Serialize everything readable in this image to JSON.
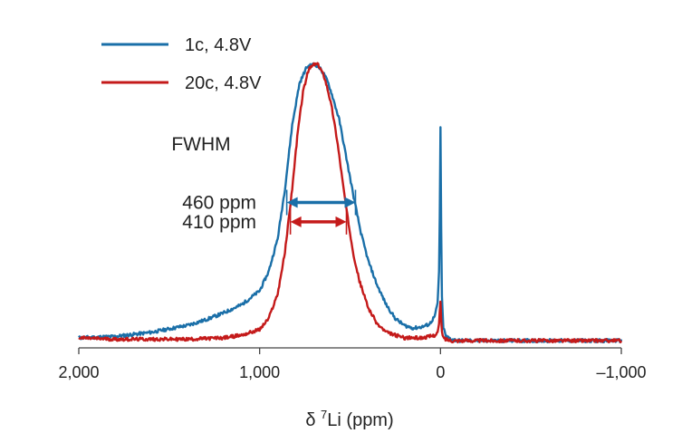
{
  "chart_data": {
    "type": "line",
    "title": "",
    "xlabel": {
      "prefix": "δ ",
      "superscript": "7",
      "main": "Li (ppm)"
    },
    "ylabel": "",
    "x_reversed": true,
    "xlim": [
      2000,
      -1000
    ],
    "x_ticks": [
      2000,
      1000,
      0,
      -1000
    ],
    "x_tick_labels": [
      "2,000",
      "1,000",
      "0",
      "–1,000"
    ],
    "y_axis_shown": false,
    "grid": false,
    "legend_position": "top-left",
    "series": [
      {
        "name": "1c, 4.8V",
        "color": "#1a6fa8",
        "x": [
          2000,
          1800,
          1600,
          1400,
          1300,
          1200,
          1100,
          1000,
          950,
          900,
          860,
          820,
          780,
          740,
          700,
          680,
          660,
          640,
          620,
          600,
          560,
          520,
          480,
          440,
          400,
          350,
          300,
          250,
          200,
          150,
          100,
          60,
          30,
          15,
          8,
          4,
          0,
          -4,
          -8,
          -15,
          -30,
          -60,
          -100,
          -200,
          -400,
          -600,
          -800,
          -1000
        ],
        "y": [
          0.01,
          0.015,
          0.03,
          0.055,
          0.075,
          0.1,
          0.13,
          0.18,
          0.25,
          0.37,
          0.55,
          0.78,
          0.93,
          0.99,
          1.0,
          0.995,
          0.98,
          0.96,
          0.93,
          0.89,
          0.8,
          0.66,
          0.52,
          0.39,
          0.29,
          0.2,
          0.13,
          0.08,
          0.055,
          0.045,
          0.05,
          0.06,
          0.09,
          0.14,
          0.25,
          0.45,
          0.77,
          0.4,
          0.16,
          0.05,
          0.015,
          0.005,
          0.0,
          0.0,
          0.0,
          0.0,
          0.0,
          0.0
        ]
      },
      {
        "name": "20c, 4.8V",
        "color": "#c41a1a",
        "x": [
          2000,
          1800,
          1600,
          1400,
          1200,
          1100,
          1000,
          950,
          900,
          860,
          820,
          790,
          760,
          730,
          700,
          680,
          660,
          640,
          620,
          600,
          570,
          540,
          510,
          480,
          450,
          400,
          350,
          300,
          250,
          200,
          150,
          100,
          60,
          30,
          15,
          8,
          4,
          0,
          -4,
          -8,
          -15,
          -30,
          -60,
          -100,
          -200,
          -400,
          -600,
          -800,
          -1000
        ],
        "y": [
          0.01,
          0.005,
          0.005,
          0.005,
          0.01,
          0.02,
          0.04,
          0.08,
          0.17,
          0.32,
          0.55,
          0.75,
          0.9,
          0.98,
          1.0,
          1.0,
          0.98,
          0.95,
          0.9,
          0.84,
          0.72,
          0.57,
          0.43,
          0.31,
          0.22,
          0.12,
          0.06,
          0.03,
          0.02,
          0.01,
          0.01,
          0.01,
          0.015,
          0.02,
          0.03,
          0.06,
          0.1,
          0.14,
          0.08,
          0.03,
          0.01,
          0.005,
          0.0,
          0.0,
          0.0,
          0.0,
          0.0,
          0.0,
          0.0
        ]
      }
    ],
    "annotations": {
      "fwhm_label": "FWHM",
      "arrows": [
        {
          "label": "460 ppm",
          "color": "#1a6fa8",
          "x_from": 850,
          "x_to": 470,
          "level": 0.5
        },
        {
          "label": "410 ppm",
          "color": "#c41a1a",
          "x_from": 830,
          "x_to": 520,
          "level": 0.43
        }
      ]
    }
  }
}
